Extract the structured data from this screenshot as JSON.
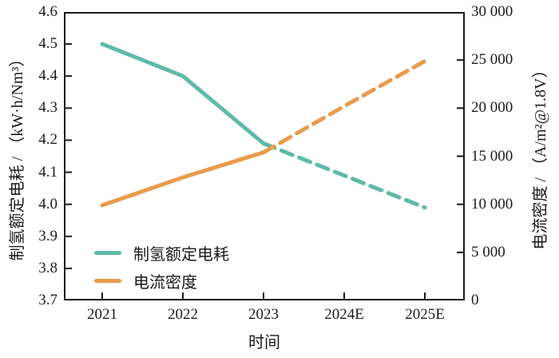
{
  "chart_data": {
    "type": "line",
    "title": "",
    "xlabel": "时间",
    "ylabel_left": "制氢额定电耗 / （kW·h/Nm³）",
    "ylabel_right": "电流密度 / （A/m²@1.8V）",
    "categories": [
      "2021",
      "2022",
      "2023",
      "2024E",
      "2025E"
    ],
    "yaxis_left": {
      "min": 3.7,
      "max": 4.6,
      "ticks": [
        "3.7",
        "3.8",
        "3.9",
        "4.0",
        "4.1",
        "4.2",
        "4.3",
        "4.4",
        "4.5",
        "4.6"
      ]
    },
    "yaxis_right": {
      "min": 0,
      "max": 30000,
      "ticks": [
        "0",
        "5 000",
        "10 000",
        "15 000",
        "20 000",
        "25 000",
        "30 000"
      ]
    },
    "series": [
      {
        "key": "hydrogen-rated-power-consumption",
        "name": "制氢额定电耗",
        "axis": "left",
        "color": "#5fbaa8",
        "values": [
          4.5,
          4.4,
          4.19,
          4.09,
          3.99
        ],
        "solid_until_index": 2,
        "forecast_style": "dashed"
      },
      {
        "key": "current-density",
        "name": "电流密度",
        "axis": "right",
        "color": "#e89b4b",
        "values": [
          9900,
          12800,
          15400,
          20200,
          24900
        ],
        "solid_until_index": 2,
        "forecast_style": "dashed"
      }
    ],
    "legend_position": "lower-left",
    "grid": false,
    "axis_color": "#1a1a1a",
    "line_width": 5
  }
}
